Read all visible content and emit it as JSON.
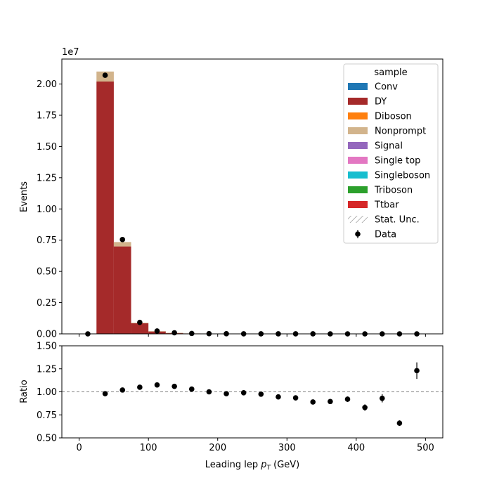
{
  "chart_data": [
    {
      "type": "bar",
      "stacked": true,
      "panel": "main",
      "ylabel": "Events",
      "offset_label": "1e7",
      "y_scale_factor": 10000000,
      "xlim": [
        -25,
        525
      ],
      "ylim": [
        0,
        2.2
      ],
      "yticks": [
        0,
        0.25,
        0.5,
        0.75,
        1.0,
        1.25,
        1.5,
        1.75,
        2.0
      ],
      "ytick_labels": [
        "0.00",
        "0.25",
        "0.50",
        "0.75",
        "1.00",
        "1.25",
        "1.50",
        "1.75",
        "2.00"
      ],
      "xticks": [
        0,
        100,
        200,
        300,
        400,
        500
      ],
      "bin_edges": [
        0,
        25,
        50,
        75,
        100,
        125,
        150,
        175,
        200,
        225,
        250,
        275,
        300,
        325,
        350,
        375,
        400,
        425,
        450,
        475,
        500
      ],
      "series": [
        {
          "name": "DY",
          "color": "#a52a2a",
          "values": [
            0,
            2.02,
            0.7,
            0.085,
            0.02,
            0.007,
            0.003,
            0.0015,
            0.0008,
            0.0005,
            0.0003,
            0.0002,
            0.0001,
            0.0001,
            0,
            0,
            0,
            0,
            0,
            0
          ]
        },
        {
          "name": "Nonprompt",
          "color": "#d2b48c",
          "values": [
            0,
            0.08,
            0.035,
            0.004,
            0.001,
            0.0005,
            0.0002,
            0.0001,
            0,
            0,
            0,
            0,
            0,
            0,
            0,
            0,
            0,
            0,
            0,
            0
          ]
        }
      ],
      "data_points": {
        "name": "Data",
        "x": [
          12.5,
          37.5,
          62.5,
          87.5,
          112.5,
          137.5,
          162.5,
          187.5,
          212.5,
          237.5,
          262.5,
          287.5,
          312.5,
          337.5,
          362.5,
          387.5,
          412.5,
          437.5,
          462.5,
          487.5
        ],
        "y": [
          0,
          2.07,
          0.755,
          0.092,
          0.023,
          0.0085,
          0.0035,
          0.0016,
          0.0009,
          0.0005,
          0.0003,
          0.0002,
          0.0001,
          0.0001,
          0,
          0,
          0,
          0,
          0,
          0
        ]
      },
      "legend": {
        "title": "sample",
        "placement": "top-right",
        "entries": [
          {
            "label": "Conv",
            "color": "#1f77b4",
            "kind": "patch"
          },
          {
            "label": "DY",
            "color": "#a52a2a",
            "kind": "patch"
          },
          {
            "label": "Diboson",
            "color": "#ff7f0e",
            "kind": "patch"
          },
          {
            "label": "Nonprompt",
            "color": "#d2b48c",
            "kind": "patch"
          },
          {
            "label": "Signal",
            "color": "#9467bd",
            "kind": "patch"
          },
          {
            "label": "Single top",
            "color": "#e377c2",
            "kind": "patch"
          },
          {
            "label": "Singleboson",
            "color": "#17becf",
            "kind": "patch"
          },
          {
            "label": "Triboson",
            "color": "#2ca02c",
            "kind": "patch"
          },
          {
            "label": "Ttbar",
            "color": "#d62728",
            "kind": "patch"
          },
          {
            "label": "Stat. Unc.",
            "color": "#888888",
            "kind": "hatch"
          },
          {
            "label": "Data",
            "color": "#000000",
            "kind": "errorbar"
          }
        ]
      }
    },
    {
      "type": "scatter",
      "panel": "ratio",
      "ylabel": "Ratio",
      "xlabel_text": "Leading lep ",
      "xlabel_math": "p",
      "xlabel_sub": "T",
      "xlabel_unit": " (GeV)",
      "xlim": [
        -25,
        525
      ],
      "ylim": [
        0.5,
        1.5
      ],
      "yticks": [
        0.5,
        0.75,
        1.0,
        1.25,
        1.5
      ],
      "ytick_labels": [
        "0.50",
        "0.75",
        "1.00",
        "1.25",
        "1.50"
      ],
      "xticks": [
        0,
        100,
        200,
        300,
        400,
        500
      ],
      "xtick_labels": [
        "0",
        "100",
        "200",
        "300",
        "400",
        "500"
      ],
      "reference_line": 1.0,
      "x": [
        37.5,
        62.5,
        87.5,
        112.5,
        137.5,
        162.5,
        187.5,
        212.5,
        237.5,
        262.5,
        287.5,
        312.5,
        337.5,
        362.5,
        387.5,
        412.5,
        437.5,
        462.5,
        487.5
      ],
      "y": [
        0.98,
        1.02,
        1.05,
        1.075,
        1.06,
        1.03,
        1.0,
        0.98,
        0.99,
        0.975,
        0.945,
        0.935,
        0.89,
        0.895,
        0.92,
        0.83,
        0.93,
        0.66,
        1.23
      ],
      "yerr": [
        0.002,
        0.002,
        0.004,
        0.006,
        0.008,
        0.01,
        0.012,
        0.014,
        0.016,
        0.018,
        0.02,
        0.022,
        0.024,
        0.026,
        0.03,
        0.035,
        0.045,
        0.03,
        0.09
      ]
    }
  ]
}
